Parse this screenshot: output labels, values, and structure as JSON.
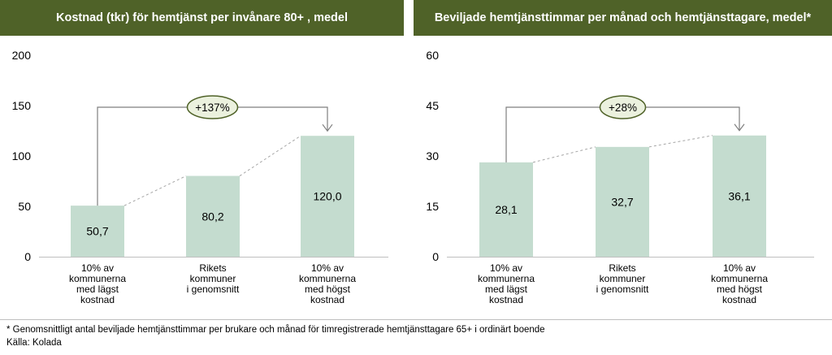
{
  "colors": {
    "header_bg": "#4f6228",
    "header_text": "#ffffff",
    "bar": "#c4dccf",
    "bracket": "#7f7f7f",
    "dashed": "#a6a6a6",
    "badge_fill": "#ebf1de",
    "badge_border": "#4f6228"
  },
  "chart_data": [
    {
      "type": "bar",
      "title": "Kostnad (tkr) för hemtjänst per invånare 80+ , medel",
      "categories": [
        [
          "10% av",
          "kommunerna",
          "med lägst",
          "kostnad"
        ],
        [
          "Rikets",
          "kommuner",
          "i genomsnitt"
        ],
        [
          "10% av",
          "kommunerna",
          "med högst",
          "kostnad"
        ]
      ],
      "values": [
        50.7,
        80.2,
        120.0
      ],
      "value_labels": [
        "50,7",
        "80,2",
        "120,0"
      ],
      "ylim": [
        0,
        200
      ],
      "yticks": [
        "0",
        "50",
        "100",
        "150",
        "200"
      ],
      "annotation": "+137%",
      "xlabel": "",
      "ylabel": ""
    },
    {
      "type": "bar",
      "title": "Beviljade hemtjänsttimmar per månad och hemtjänsttagare, medel*",
      "categories": [
        [
          "10% av",
          "kommunerna",
          "med lägst",
          "kostnad"
        ],
        [
          "Rikets",
          "kommuner",
          "i genomsnitt"
        ],
        [
          "10% av",
          "kommunerna",
          "med högst",
          "kostnad"
        ]
      ],
      "values": [
        28.1,
        32.7,
        36.1
      ],
      "value_labels": [
        "28,1",
        "32,7",
        "36,1"
      ],
      "ylim": [
        0,
        60
      ],
      "yticks": [
        "0",
        "15",
        "30",
        "45",
        "60"
      ],
      "annotation": "+28%",
      "xlabel": "",
      "ylabel": ""
    }
  ],
  "footnotes": {
    "note": "* Genomsnittligt  antal beviljade  hemtjänsttimmar  per brukare och månad  för timregistrerade  hemtjänsttagare  65+  i ordinärt boende",
    "source": "Källa:  Kolada"
  }
}
